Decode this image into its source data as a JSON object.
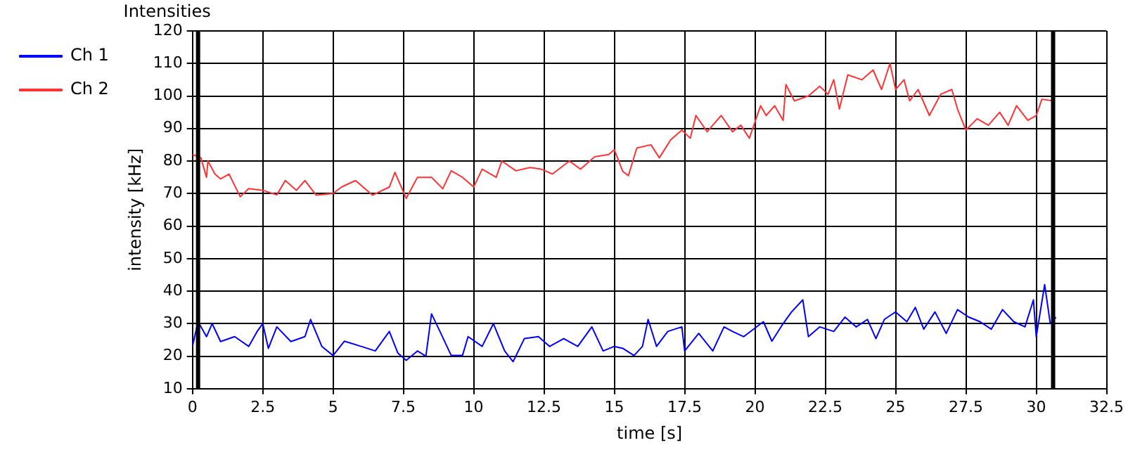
{
  "chart_data": {
    "type": "line",
    "title": "Intensities",
    "xlabel": "time [s]",
    "ylabel": "intensity [kHz]",
    "xlim": [
      0,
      32.5
    ],
    "xticks": [
      0,
      2.5,
      5,
      7.5,
      10,
      12.5,
      15,
      17.5,
      20,
      22.5,
      25,
      27.5,
      30,
      32.5
    ],
    "ylim": [
      10,
      120
    ],
    "yticks": [
      10,
      20,
      30,
      40,
      50,
      60,
      70,
      80,
      90,
      100,
      110,
      120
    ],
    "grid": true,
    "legend": "top left",
    "marker": "none",
    "line_style": "solid",
    "ref_lines": [
      {
        "axis": "x",
        "value": 0.2,
        "color": "#000000"
      },
      {
        "axis": "x",
        "value": 30.6,
        "color": "#000000"
      }
    ],
    "series": [
      {
        "name": "Ch 1",
        "color": "#0000ff",
        "x": [
          0,
          0.2,
          0.5,
          0.7,
          1,
          1.5,
          2,
          2.3,
          2.5,
          2.7,
          3,
          3.5,
          4,
          4.2,
          4.6,
          5,
          5.4,
          6,
          6.5,
          7,
          7.3,
          7.6,
          8,
          8.3,
          8.5,
          8.8,
          9.2,
          9.6,
          9.8,
          10.3,
          10.7,
          11.1,
          11.4,
          11.8,
          12.3,
          12.7,
          13.2,
          13.7,
          14.2,
          14.6,
          15,
          15.3,
          15.7,
          16,
          16.2,
          16.5,
          16.9,
          17.4,
          17.5,
          18,
          18.5,
          18.9,
          19.2,
          19.6,
          20.3,
          20.6,
          21,
          21.3,
          21.7,
          21.9,
          22.3,
          22.8,
          23.2,
          23.6,
          24,
          24.3,
          24.6,
          25,
          25.4,
          25.7,
          26,
          26.4,
          26.8,
          27.2,
          27.6,
          28,
          28.4,
          28.8,
          29.2,
          29.6,
          29.9,
          30,
          30.3,
          30.5,
          30.7
        ],
        "values": [
          23,
          30.6,
          26,
          30,
          24.5,
          26,
          23,
          27.6,
          30,
          22.4,
          29,
          24.5,
          26,
          31.3,
          23,
          20.2,
          24.6,
          23,
          21.6,
          27.6,
          21,
          18.7,
          21.6,
          20,
          33,
          27.6,
          20.2,
          20.2,
          26,
          23,
          30,
          21.6,
          18.3,
          25.4,
          26,
          23,
          25.4,
          23,
          29,
          21.6,
          23,
          22.4,
          20.2,
          23,
          31.3,
          23,
          27.6,
          29,
          21.6,
          27,
          21.6,
          29,
          27.6,
          26,
          30.6,
          24.6,
          30,
          33.6,
          37.3,
          26,
          29,
          27.6,
          32,
          29,
          31.3,
          25.4,
          31.3,
          33.6,
          30.6,
          35,
          28.3,
          33.6,
          27,
          34.3,
          32,
          30.6,
          28.3,
          34.3,
          30.6,
          29,
          37.3,
          26,
          42,
          30,
          32
        ]
      },
      {
        "name": "Ch 2",
        "color": "#ff3333",
        "x": [
          0,
          0.3,
          0.5,
          0.55,
          0.8,
          1,
          1.3,
          1.7,
          2,
          2.5,
          3,
          3.3,
          3.7,
          4,
          4.4,
          5,
          5.3,
          5.8,
          6.4,
          7,
          7.2,
          7.6,
          8,
          8.5,
          8.9,
          9.2,
          9.6,
          10,
          10.3,
          10.8,
          11,
          11.5,
          12,
          12.4,
          12.8,
          13.4,
          13.8,
          14.3,
          14.8,
          15,
          15.3,
          15.5,
          15.8,
          16.3,
          16.6,
          17,
          17.4,
          17.7,
          17.9,
          18.3,
          18.8,
          19.2,
          19.5,
          19.8,
          20.2,
          20.4,
          20.7,
          21,
          21.1,
          21.4,
          21.9,
          22.3,
          22.6,
          22.8,
          23,
          23.3,
          23.8,
          24.2,
          24.5,
          24.8,
          25,
          25.3,
          25.5,
          25.8,
          26.2,
          26.6,
          27,
          27.2,
          27.5,
          27.9,
          28.3,
          28.7,
          29,
          29.3,
          29.7,
          30,
          30.2,
          30.6
        ],
        "values": [
          82,
          81,
          75,
          80,
          76,
          74.5,
          76,
          69,
          71.5,
          71,
          69.6,
          74,
          71,
          74,
          69.5,
          70,
          72,
          74,
          69.5,
          72,
          76.5,
          68.5,
          75,
          75,
          71.5,
          77,
          75,
          72,
          77.5,
          75,
          80,
          77,
          78,
          77.5,
          76,
          80,
          77.5,
          81.3,
          82,
          83.5,
          76.8,
          75.5,
          84,
          85,
          81,
          86.5,
          89.5,
          87,
          94,
          89,
          94,
          89,
          91,
          87,
          97,
          94,
          97,
          92.5,
          103.5,
          98.5,
          100,
          103,
          100.5,
          105,
          96,
          106.5,
          105,
          108,
          102,
          110,
          102,
          105,
          98.5,
          102,
          94,
          100.5,
          102,
          96,
          89.5,
          93,
          91,
          95,
          91,
          97,
          92.5,
          94,
          99,
          98.5
        ]
      }
    ]
  }
}
